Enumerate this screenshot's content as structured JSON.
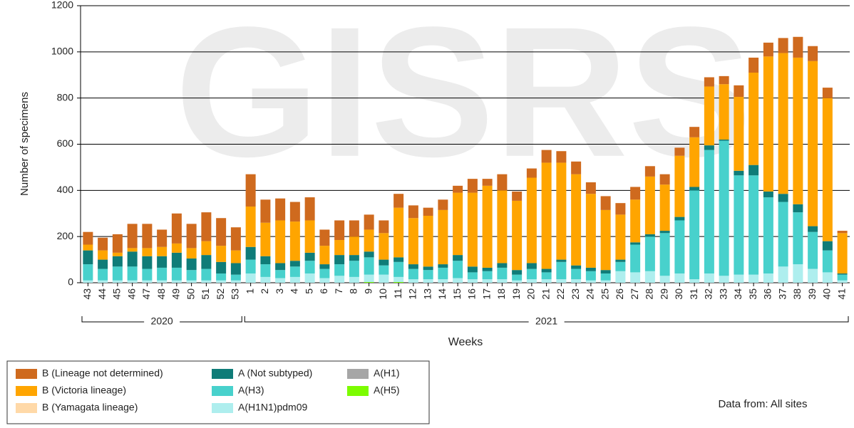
{
  "chart_data": {
    "type": "bar",
    "stacked": true,
    "watermark": "GISRS",
    "y_label": "Number of specimens",
    "x_label": "Weeks",
    "note": "Data from: All sites",
    "groups": [
      {
        "label": "2020",
        "categories": [
          "43",
          "44",
          "45",
          "46",
          "47",
          "48",
          "49",
          "50",
          "51",
          "52",
          "53"
        ]
      },
      {
        "label": "2021",
        "categories": [
          "1",
          "2",
          "3",
          "4",
          "5",
          "6",
          "7",
          "8",
          "9",
          "10",
          "11",
          "12",
          "13",
          "14",
          "15",
          "16",
          "17",
          "18",
          "19",
          "20",
          "21",
          "22",
          "23",
          "24",
          "25",
          "26",
          "27",
          "28",
          "29",
          "30",
          "31",
          "32",
          "33",
          "34",
          "35",
          "36",
          "37",
          "38",
          "39",
          "40",
          "41"
        ]
      }
    ],
    "ylim": [
      0,
      1200
    ],
    "yticks": [
      0,
      200,
      400,
      600,
      800,
      1000,
      1200
    ],
    "grid": true,
    "series": [
      {
        "name": "B (Lineage not determined)",
        "color": "#cf6a1e",
        "values": [
          55,
          55,
          80,
          105,
          105,
          75,
          130,
          105,
          125,
          120,
          100,
          140,
          100,
          95,
          85,
          100,
          70,
          85,
          70,
          65,
          55,
          60,
          55,
          35,
          45,
          30,
          60,
          30,
          70,
          40,
          40,
          55,
          50,
          55,
          50,
          60,
          50,
          55,
          45,
          45,
          35,
          45,
          40,
          35,
          50,
          65,
          60,
          65,
          90,
          65,
          45,
          10
        ]
      },
      {
        "name": "B (Victoria lineage)",
        "color": "#ffa500",
        "values": [
          25,
          40,
          15,
          15,
          35,
          40,
          40,
          45,
          60,
          70,
          55,
          175,
          145,
          185,
          170,
          140,
          80,
          65,
          80,
          95,
          115,
          215,
          200,
          220,
          235,
          270,
          320,
          355,
          315,
          300,
          370,
          460,
          420,
          395,
          320,
          260,
          195,
          185,
          250,
          200,
          265,
          215,
          255,
          240,
          320,
          400,
          585,
          610,
          635,
          715,
          620,
          175
        ]
      },
      {
        "name": "B (Yamagata lineage)",
        "color": "#ffd9a8",
        "values": [
          0,
          0,
          0,
          0,
          0,
          0,
          0,
          0,
          0,
          0,
          0,
          0,
          0,
          0,
          0,
          0,
          0,
          0,
          0,
          0,
          0,
          0,
          0,
          0,
          0,
          0,
          0,
          0,
          0,
          0,
          0,
          0,
          0,
          0,
          0,
          0,
          0,
          0,
          0,
          0,
          0,
          0,
          0,
          0,
          0,
          0,
          0,
          0,
          0,
          0,
          0,
          0
        ]
      },
      {
        "name": "A (Not subtyped)",
        "color": "#0f7c78",
        "values": [
          60,
          40,
          45,
          65,
          55,
          50,
          65,
          50,
          60,
          50,
          50,
          55,
          35,
          30,
          25,
          35,
          20,
          40,
          25,
          25,
          25,
          20,
          20,
          15,
          15,
          25,
          25,
          15,
          20,
          20,
          25,
          15,
          10,
          15,
          15,
          15,
          10,
          10,
          10,
          10,
          15,
          15,
          20,
          5,
          20,
          45,
          25,
          35,
          35,
          25,
          40,
          5
        ]
      },
      {
        "name": "A(H3)",
        "color": "#48d1cc",
        "values": [
          70,
          50,
          60,
          60,
          50,
          55,
          55,
          45,
          50,
          30,
          25,
          60,
          55,
          35,
          45,
          55,
          40,
          50,
          70,
          75,
          40,
          65,
          45,
          40,
          50,
          75,
          30,
          35,
          50,
          25,
          45,
          30,
          75,
          45,
          40,
          30,
          40,
          120,
          150,
          185,
          230,
          385,
          535,
          585,
          430,
          430,
          330,
          280,
          225,
          160,
          95,
          25
        ]
      },
      {
        "name": "A(H1N1)pdm09",
        "color": "#aeeeee",
        "values": [
          10,
          10,
          10,
          10,
          10,
          10,
          10,
          10,
          10,
          10,
          10,
          40,
          25,
          20,
          25,
          40,
          20,
          30,
          25,
          32,
          35,
          22,
          15,
          15,
          15,
          20,
          15,
          15,
          15,
          10,
          15,
          15,
          15,
          15,
          10,
          10,
          50,
          45,
          50,
          30,
          40,
          15,
          40,
          30,
          35,
          35,
          40,
          70,
          80,
          60,
          45,
          10
        ]
      },
      {
        "name": "A(H1)",
        "color": "#a6a6a6",
        "values": [
          0,
          0,
          0,
          0,
          0,
          0,
          0,
          0,
          0,
          0,
          0,
          0,
          0,
          0,
          0,
          0,
          0,
          0,
          0,
          0,
          0,
          0,
          0,
          0,
          0,
          0,
          0,
          0,
          0,
          0,
          0,
          0,
          0,
          0,
          0,
          0,
          0,
          0,
          0,
          0,
          0,
          0,
          0,
          0,
          0,
          0,
          0,
          0,
          0,
          0,
          0,
          0
        ]
      },
      {
        "name": "A(H5)",
        "color": "#7cfc00",
        "values": [
          0,
          0,
          0,
          0,
          0,
          0,
          0,
          0,
          0,
          0,
          0,
          0,
          0,
          0,
          0,
          0,
          0,
          0,
          0,
          3,
          0,
          3,
          0,
          0,
          0,
          0,
          0,
          0,
          0,
          0,
          0,
          0,
          0,
          0,
          0,
          0,
          0,
          0,
          0,
          0,
          0,
          0,
          0,
          0,
          0,
          0,
          0,
          0,
          0,
          0,
          0,
          0
        ]
      }
    ]
  }
}
